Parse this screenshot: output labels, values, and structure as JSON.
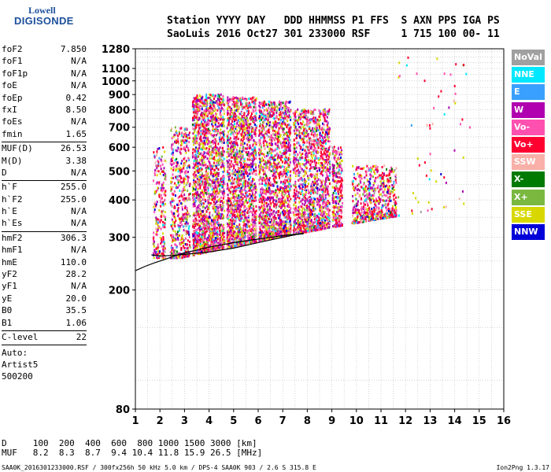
{
  "logo": {
    "line1": "Lowell",
    "line2": "DIGISONDE"
  },
  "header": {
    "labels": [
      "Station",
      "YYYY",
      "DAY",
      "DDD",
      "HHMMSS",
      "P1",
      "FFS",
      "S",
      "AXN",
      "PPS",
      "IGA",
      "PS"
    ],
    "values": [
      "SaoLuis",
      "2016",
      "Oct27",
      "301",
      "233000",
      "RSF",
      "",
      "1",
      "715",
      "100",
      "00-",
      "11"
    ]
  },
  "params": [
    {
      "k": "foF2",
      "v": "7.850"
    },
    {
      "k": "foF1",
      "v": "N/A"
    },
    {
      "k": "foF1p",
      "v": "N/A"
    },
    {
      "k": "foE",
      "v": "N/A"
    },
    {
      "k": "foEp",
      "v": "0.42"
    },
    {
      "k": "fxI",
      "v": "8.50"
    },
    {
      "k": "foEs",
      "v": "N/A"
    },
    {
      "k": "fmin",
      "v": "1.65"
    },
    {
      "k": "MUF(D)",
      "v": "26.53"
    },
    {
      "k": "M(D)",
      "v": "3.38"
    },
    {
      "k": "D",
      "v": "N/A"
    },
    {
      "k": "h`F",
      "v": "255.0"
    },
    {
      "k": "h`F2",
      "v": "255.0"
    },
    {
      "k": "h`E",
      "v": "N/A"
    },
    {
      "k": "h`Es",
      "v": "N/A"
    },
    {
      "k": "hmF2",
      "v": "306.3"
    },
    {
      "k": "hmF1",
      "v": "N/A"
    },
    {
      "k": "hmE",
      "v": "110.0"
    },
    {
      "k": "yF2",
      "v": "28.2"
    },
    {
      "k": "yF1",
      "v": "N/A"
    },
    {
      "k": "yE",
      "v": "20.0"
    },
    {
      "k": "B0",
      "v": "35.5"
    },
    {
      "k": "B1",
      "v": "1.06"
    },
    {
      "k": "C-level",
      "v": "22"
    }
  ],
  "auto": [
    "Auto:",
    "Artist5",
    "500200"
  ],
  "legend": [
    {
      "label": "NoVal",
      "color": "#a0a0a0"
    },
    {
      "label": "NNE",
      "color": "#00e8ff"
    },
    {
      "label": "E",
      "color": "#3aa0ff"
    },
    {
      "label": "W",
      "color": "#b000b0"
    },
    {
      "label": "Vo-",
      "color": "#ff50b0"
    },
    {
      "label": "Vo+",
      "color": "#ff0030"
    },
    {
      "label": "SSW",
      "color": "#f8b0a8"
    },
    {
      "label": "X-",
      "color": "#007a00"
    },
    {
      "label": "X+",
      "color": "#7ab840"
    },
    {
      "label": "SSE",
      "color": "#d8d800"
    },
    {
      "label": "NNW",
      "color": "#0000d8"
    }
  ],
  "dmuf": {
    "d_label": "D",
    "d_values": [
      "100",
      "200",
      "400",
      "600",
      "800",
      "1000",
      "1500",
      "3000"
    ],
    "d_unit": "[km]",
    "muf_label": "MUF",
    "muf_values": [
      "8.2",
      "8.3",
      "8.7",
      "9.4",
      "10.4",
      "11.8",
      "15.9",
      "26.5"
    ],
    "muf_unit": "[MHz]"
  },
  "footer": {
    "left": "SAA0K_2016301233000.RSF / 300fx256h 50 kHz 5.0 km / DPS-4 SAA0K 903 / 2.6 S 315.8 E",
    "right": "Ion2Png 1.3.17"
  },
  "chart_data": {
    "type": "scatter",
    "xlabel": "",
    "ylabel": "",
    "xlim": [
      1,
      16
    ],
    "ylim": [
      80,
      1280
    ],
    "y_scale": "log",
    "x_ticks": [
      1,
      2,
      3,
      4,
      5,
      6,
      7,
      8,
      9,
      10,
      11,
      12,
      13,
      14,
      15,
      16
    ],
    "y_ticks": [
      80,
      200,
      300,
      400,
      500,
      600,
      700,
      800,
      900,
      1000,
      1100,
      1280
    ],
    "grid": true,
    "legend_position": "right",
    "series": [
      {
        "trace_curve": true,
        "x": [
          1.0,
          1.4,
          1.8,
          2.2,
          2.6,
          3.0,
          3.5,
          4.0,
          4.5,
          5.0,
          5.5,
          6.0,
          6.5,
          7.0,
          7.5,
          7.85
        ],
        "y": [
          232,
          240,
          247,
          253,
          260,
          266,
          272,
          278,
          283,
          288,
          292,
          296,
          300,
          304,
          307,
          308
        ]
      },
      {
        "trace_curve": true,
        "x": [
          1.65,
          2.0,
          2.5,
          3.0,
          4.0,
          5.0,
          6.0,
          7.0,
          7.5,
          7.85
        ],
        "y": [
          262,
          260,
          261,
          263,
          268,
          276,
          288,
          300,
          306,
          310
        ]
      }
    ],
    "echo_clusters": [
      {
        "fmin": 1.7,
        "fmax": 2.2,
        "hmin": 255,
        "hmax": 600,
        "density": 220
      },
      {
        "fmin": 2.4,
        "fmax": 3.2,
        "hmin": 255,
        "hmax": 700,
        "density": 500
      },
      {
        "fmin": 3.3,
        "fmax": 4.6,
        "hmin": 258,
        "hmax": 900,
        "density": 1800
      },
      {
        "fmin": 4.7,
        "fmax": 5.9,
        "hmin": 265,
        "hmax": 880,
        "density": 1500
      },
      {
        "fmin": 6.0,
        "fmax": 7.3,
        "hmin": 275,
        "hmax": 850,
        "density": 1500
      },
      {
        "fmin": 7.4,
        "fmax": 8.9,
        "hmin": 295,
        "hmax": 800,
        "density": 1300
      },
      {
        "fmin": 9.0,
        "fmax": 9.4,
        "hmin": 310,
        "hmax": 600,
        "density": 260
      },
      {
        "fmin": 9.8,
        "fmax": 11.6,
        "hmin": 330,
        "hmax": 520,
        "density": 600
      },
      {
        "fmin": 11.6,
        "fmax": 14.6,
        "hmin": 100,
        "hmax": 1250,
        "density": 60
      }
    ]
  }
}
